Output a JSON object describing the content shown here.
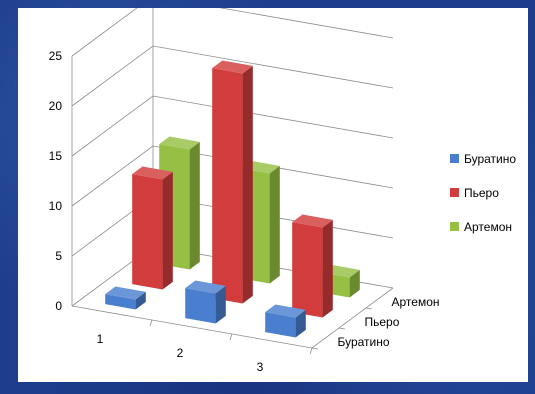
{
  "chart_data": {
    "type": "bar",
    "subtype": "3d-clustered-depth",
    "title": "",
    "xlabel": "",
    "ylabel": "",
    "categories": [
      "1",
      "2",
      "3"
    ],
    "ylim": [
      0,
      25
    ],
    "yticks": [
      0,
      5,
      10,
      15,
      20,
      25
    ],
    "grid": true,
    "legend_position": "right",
    "series": [
      {
        "name": "Буратино",
        "values": [
          1,
          3,
          2
        ],
        "color": "#4a7fcf"
      },
      {
        "name": "Пьеро",
        "values": [
          11,
          23,
          9
        ],
        "color": "#d23c3c"
      },
      {
        "name": "Артемон",
        "values": [
          12,
          11,
          2
        ],
        "color": "#95c043"
      }
    ]
  }
}
